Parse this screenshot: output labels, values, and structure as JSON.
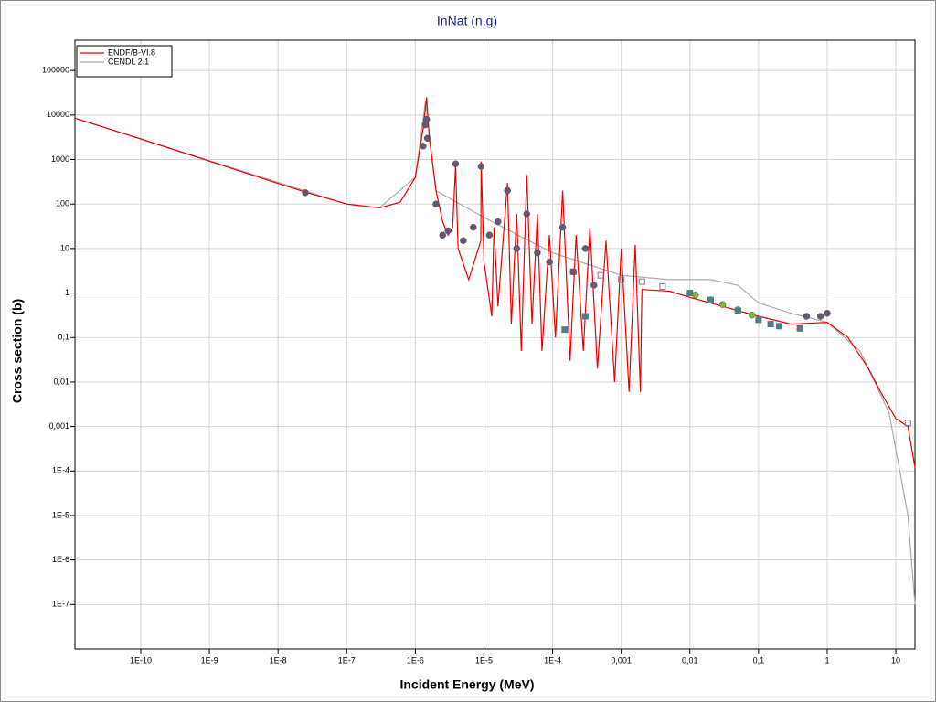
{
  "chart_data": {
    "type": "line",
    "title": "InNat (n,g)",
    "xlabel": "Incident Energy (MeV)",
    "ylabel": "Cross section (b)",
    "xscale": "log",
    "yscale": "log",
    "grid": true,
    "legend": "upper left",
    "xlim": [
      1.1e-11,
      19
    ],
    "ylim": [
      1e-08,
      480000
    ],
    "xticks": [
      {
        "value": 1e-10,
        "label": "1E-10"
      },
      {
        "value": 1e-09,
        "label": "1E-9"
      },
      {
        "value": 1e-08,
        "label": "1E-8"
      },
      {
        "value": 1e-07,
        "label": "1E-7"
      },
      {
        "value": 1e-06,
        "label": "1E-6"
      },
      {
        "value": 1e-05,
        "label": "1E-5"
      },
      {
        "value": 0.0001,
        "label": "1E-4"
      },
      {
        "value": 0.001,
        "label": "0,001"
      },
      {
        "value": 0.01,
        "label": "0,01"
      },
      {
        "value": 0.1,
        "label": "0,1"
      },
      1,
      10
    ],
    "yticks": [
      100000,
      10000,
      1000,
      100,
      10,
      1,
      {
        "value": 0.1,
        "label": "0,1"
      },
      {
        "value": 0.01,
        "label": "0,01"
      },
      {
        "value": 0.001,
        "label": "0,001"
      },
      {
        "value": 0.0001,
        "label": "1E-4"
      },
      {
        "value": 1e-05,
        "label": "1E-5"
      },
      {
        "value": 1e-06,
        "label": "1E-6"
      },
      {
        "value": 1e-07,
        "label": "1E-7"
      }
    ],
    "series": [
      {
        "name": "ENDF/B-VI.8",
        "color": "#ee0000",
        "x": [
          1.1e-11,
          1e-10,
          1e-09,
          1e-08,
          2.5e-08,
          1e-07,
          3e-07,
          6e-07,
          1e-06,
          1.3e-06,
          1.46e-06,
          1.6e-06,
          2e-06,
          2.5e-06,
          3e-06,
          3.5e-06,
          3.86e-06,
          4.2e-06,
          6e-06,
          9e-06,
          9.1e-06,
          1e-05,
          1.3e-05,
          1.4e-05,
          1.6e-05,
          2.2e-05,
          2.5e-05,
          3e-05,
          3.5e-05,
          4.2e-05,
          5e-05,
          6e-05,
          7e-05,
          9e-05,
          0.00011,
          0.00014,
          0.00018,
          0.00022,
          0.00028,
          0.00035,
          0.00045,
          0.0006,
          0.0008,
          0.001,
          0.0013,
          0.0016,
          0.0019,
          0.002,
          0.005,
          0.01,
          0.03,
          0.1,
          0.3,
          1,
          2,
          4,
          6,
          10,
          15,
          19
        ],
        "values": [
          8500,
          2900,
          920,
          290,
          185,
          100,
          82,
          110,
          400,
          5000,
          25000,
          3000,
          200,
          40,
          20,
          30,
          700,
          10,
          2,
          15,
          900,
          5,
          0.3,
          30,
          0.5,
          300,
          0.2,
          60,
          0.05,
          450,
          0.2,
          60,
          0.05,
          20,
          0.1,
          200,
          0.03,
          20,
          0.05,
          30,
          0.02,
          15,
          0.01,
          10,
          0.006,
          12,
          0.006,
          1.2,
          1.1,
          0.8,
          0.5,
          0.3,
          0.2,
          0.22,
          0.1,
          0.02,
          0.006,
          0.0015,
          0.001,
          0.00012
        ]
      },
      {
        "name": "CENDL 2.1",
        "color": "#aaaaaa",
        "x": [
          1.1e-11,
          1e-07,
          3e-07,
          1e-06,
          1.4e-06,
          2e-06,
          1e-05,
          0.0001,
          0.001,
          0.005,
          0.02,
          0.05,
          0.1,
          0.3,
          1,
          3,
          8,
          15,
          19
        ],
        "values": [
          8500,
          100,
          82,
          400,
          20000,
          200,
          50,
          8,
          2.5,
          2,
          2,
          1.5,
          0.6,
          0.35,
          0.22,
          0.05,
          0.002,
          1e-05,
          1e-07
        ]
      },
      {
        "color": "#6a5575",
        "marker": "circle",
        "x": [
          2.5e-08,
          1.3e-06,
          1.4e-06,
          1.46e-06,
          1.5e-06,
          2e-06,
          2.5e-06,
          3e-06,
          3.86e-06,
          5e-06,
          7e-06,
          9.1e-06,
          1.2e-05,
          1.6e-05,
          2.2e-05,
          3e-05,
          4.2e-05,
          6e-05,
          9e-05,
          0.00014,
          0.0002,
          0.0003,
          0.0004,
          0.5,
          0.8,
          1
        ],
        "values": [
          180,
          2000,
          6000,
          8000,
          3000,
          100,
          20,
          25,
          800,
          15,
          30,
          700,
          20,
          40,
          200,
          10,
          60,
          8,
          5,
          30,
          3,
          10,
          1.5,
          0.3,
          0.3,
          0.35
        ]
      },
      {
        "color": "#4f7f86",
        "marker": "square",
        "x": [
          0.00015,
          0.0003,
          0.01,
          0.02,
          0.05,
          0.1,
          0.15,
          0.2,
          0.4
        ],
        "values": [
          0.15,
          0.3,
          1,
          0.7,
          0.4,
          0.25,
          0.2,
          0.18,
          0.16
        ]
      },
      {
        "color": "#7ab648",
        "marker": "circle",
        "x": [
          0.012,
          0.02,
          0.03,
          0.05,
          0.08
        ],
        "values": [
          0.9,
          0.7,
          0.55,
          0.42,
          0.32
        ]
      },
      {
        "color": "#9a6a8a",
        "marker": "open-square",
        "x": [
          0.0002,
          0.0005,
          0.001,
          0.002,
          0.004,
          15
        ],
        "values": [
          3,
          2.5,
          2,
          1.8,
          1.4,
          0.0012
        ]
      }
    ]
  }
}
